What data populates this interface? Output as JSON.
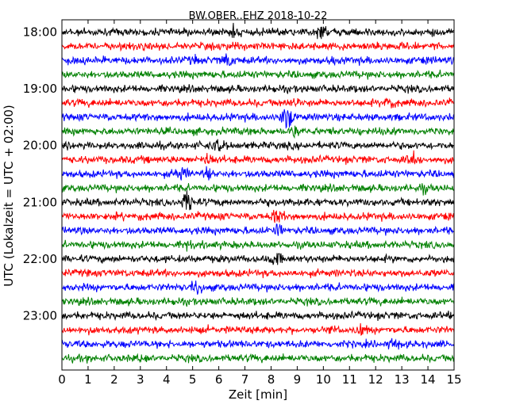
{
  "chart_data": {
    "type": "line",
    "title": "BW.OBER..EHZ 2018-10-22",
    "xlabel": "Zeit  [min]",
    "ylabel": "UTC (Lokalzeit = UTC + 02:00)",
    "xlim": [
      0,
      15
    ],
    "x_ticks": [
      "0",
      "1",
      "2",
      "3",
      "4",
      "5",
      "6",
      "7",
      "8",
      "9",
      "10",
      "11",
      "12",
      "13",
      "14",
      "15"
    ],
    "y_ticks": [
      "18:00",
      "19:00",
      "20:00",
      "21:00",
      "22:00",
      "23:00"
    ],
    "trace_interval_minutes": 15,
    "trace_start": "18:00",
    "trace_count": 24,
    "trace_colors": [
      "#000000",
      "#ff0000",
      "#0000ff",
      "#008000"
    ],
    "grid": false,
    "legend": "none"
  }
}
